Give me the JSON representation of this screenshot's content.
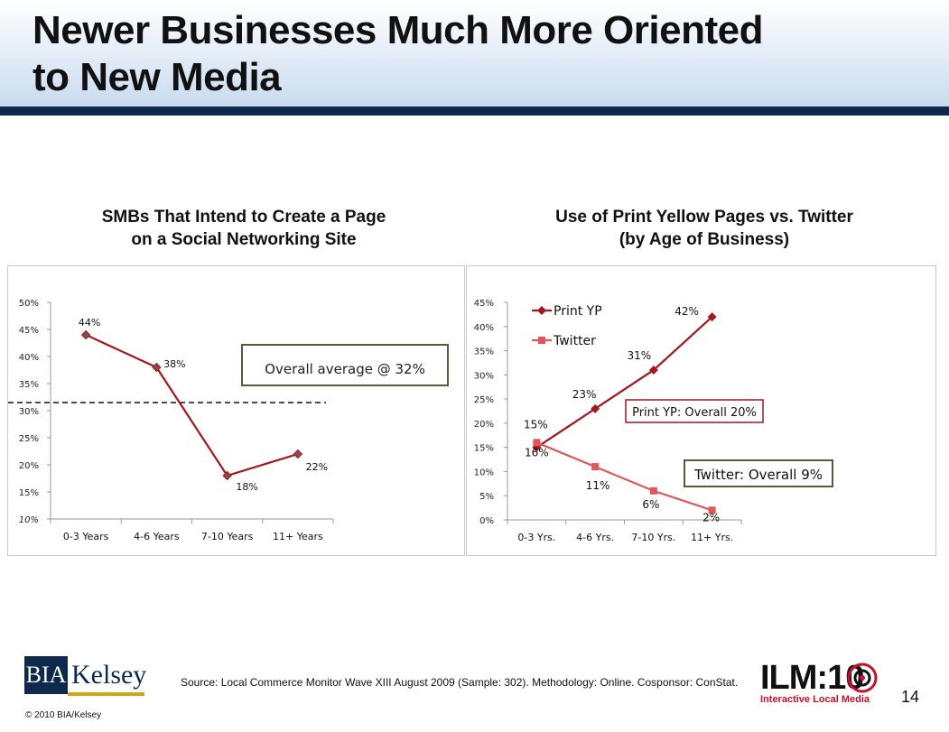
{
  "slide": {
    "title_line1": "Newer Businesses Much More Oriented",
    "title_line2": "to New Media",
    "page_number": "14",
    "source": "Source: Local Commerce Monitor Wave XIII August 2009 (Sample: 302). Methodology: Online. Cosponsor: ConStat.",
    "copyright": "© 2010 BIA/Kelsey",
    "logo_left": {
      "box": "BIA",
      "word": "Kelsey"
    },
    "logo_right": {
      "main": "ILM:10",
      "sub": "Interactive Local Media"
    },
    "colors": {
      "header_bar": "#0d2a4d",
      "series_print": "#a3171f",
      "series_twitter": "#e0575b",
      "callout_border": "#5a5a3a"
    }
  },
  "chart_data": [
    {
      "type": "line",
      "title_line1": "SMBs That Intend to Create a Page",
      "title_line2": "on a Social Networking Site",
      "categories": [
        "0-3 Years",
        "4-6 Years",
        "7-10 Years",
        "11+ Years"
      ],
      "series": [
        {
          "values": [
            44,
            38,
            18,
            22
          ],
          "labels": [
            "44%",
            "38%",
            "18%",
            "22%"
          ]
        }
      ],
      "yticks": [
        "10%",
        "15%",
        "20%",
        "25%",
        "30%",
        "35%",
        "40%",
        "45%",
        "50%"
      ],
      "ylim": [
        10,
        50
      ],
      "reference_line": {
        "value": 31.5,
        "style": "dashed"
      },
      "annotation": "Overall average @ 32%",
      "grid": false,
      "legend": "none"
    },
    {
      "type": "line",
      "title_line1": "Use of Print Yellow Pages vs. Twitter",
      "title_line2": "(by Age of Business)",
      "categories": [
        "0-3 Yrs.",
        "4-6 Yrs.",
        "7-10 Yrs.",
        "11+ Yrs."
      ],
      "series": [
        {
          "name": "Print YP",
          "values": [
            15,
            23,
            31,
            42
          ],
          "labels": [
            "15%",
            "23%",
            "31%",
            "42%"
          ]
        },
        {
          "name": "Twitter",
          "values": [
            16,
            11,
            6,
            2
          ],
          "labels": [
            "16%",
            "11%",
            "6%",
            "2%"
          ]
        }
      ],
      "yticks": [
        "0%",
        "5%",
        "10%",
        "15%",
        "20%",
        "25%",
        "30%",
        "35%",
        "40%",
        "45%"
      ],
      "ylim": [
        0,
        45
      ],
      "annotations": [
        "Print YP: Overall 20%",
        "Twitter: Overall 9%"
      ],
      "grid": false,
      "legend": "top-left"
    }
  ]
}
